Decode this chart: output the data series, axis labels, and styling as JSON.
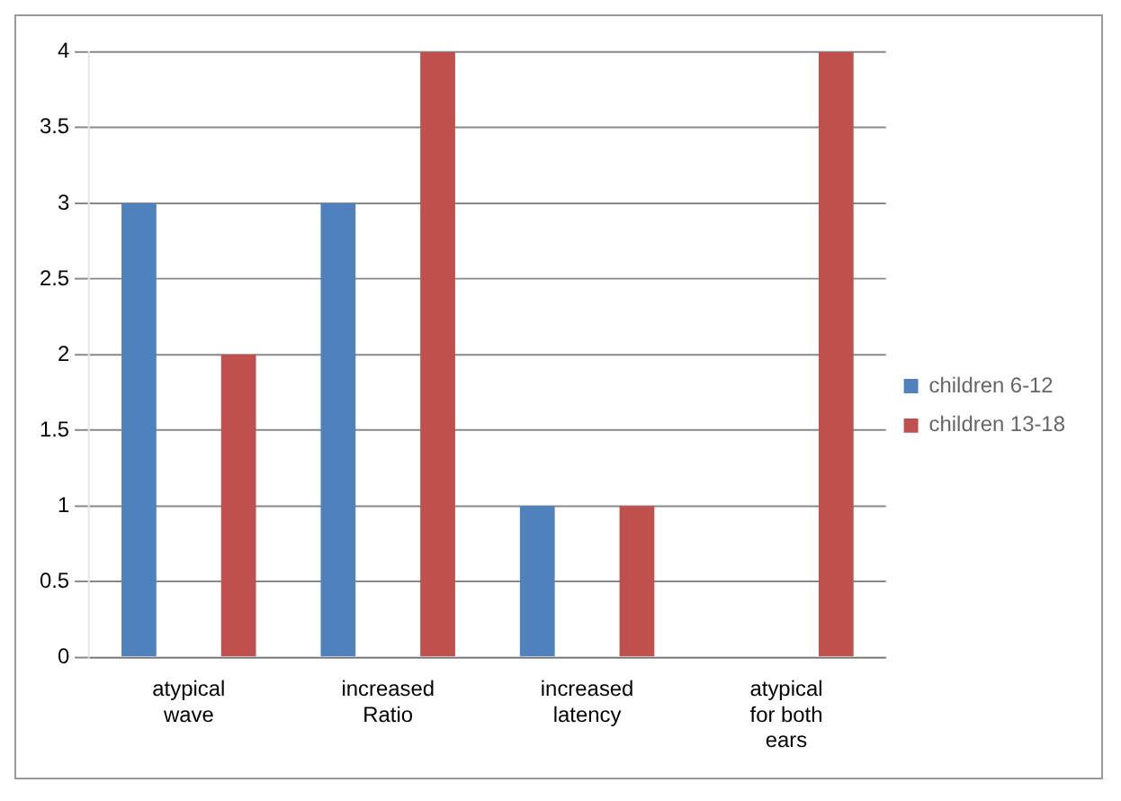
{
  "chart_data": {
    "type": "bar",
    "categories": [
      "atypical wave",
      "increased Ratio",
      "increased latency",
      "atypical for both ears"
    ],
    "series": [
      {
        "name": "children 6-12",
        "color": "#4f81bd",
        "values": [
          3,
          3,
          1,
          0
        ]
      },
      {
        "name": "children 13-18",
        "color": "#c0504d",
        "values": [
          2,
          4,
          1,
          4
        ]
      }
    ],
    "ylim": [
      0,
      4
    ],
    "yticks": [
      0,
      0.5,
      1,
      1.5,
      2,
      2.5,
      3,
      3.5,
      4
    ],
    "grid": "y",
    "legend": "right"
  }
}
